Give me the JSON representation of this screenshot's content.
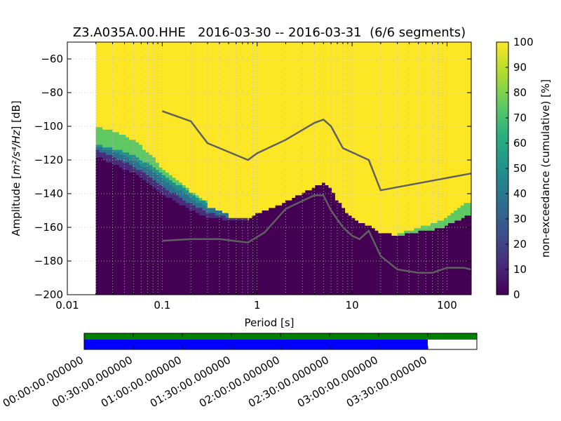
{
  "chart_data": {
    "type": "heatmap",
    "title": "Z3.A035A.00.HHE   2016-03-30 -- 2016-03-31  (6/6 segments)",
    "xlabel": "Period [s]",
    "ylabel": "Amplitude [m²/s⁴/Hz] [dB]",
    "ylabel_prefix": "Amplitude [",
    "ylabel_unit": "m²/s⁴/Hz",
    "ylabel_suffix": "] [dB]",
    "x_scale": "log",
    "xlim": [
      0.01,
      180
    ],
    "ylim": [
      -200,
      -50
    ],
    "x_ticks": [
      {
        "value": 0.01,
        "label": "0.01"
      },
      {
        "value": 0.1,
        "label": "0.1"
      },
      {
        "value": 1,
        "label": "1"
      },
      {
        "value": 10,
        "label": "10"
      },
      {
        "value": 100,
        "label": "100"
      }
    ],
    "y_ticks": [
      {
        "value": -60,
        "label": "−60"
      },
      {
        "value": -80,
        "label": "−80"
      },
      {
        "value": -100,
        "label": "−100"
      },
      {
        "value": -120,
        "label": "−120"
      },
      {
        "value": -140,
        "label": "−140"
      },
      {
        "value": -160,
        "label": "−160"
      },
      {
        "value": -180,
        "label": "−180"
      },
      {
        "value": -200,
        "label": "−200"
      }
    ],
    "grid": true,
    "colorbar": {
      "label": "non-exceedance (cumulative) [%]",
      "range": [
        0,
        100
      ],
      "ticks": [
        "0",
        "10",
        "20",
        "30",
        "40",
        "50",
        "60",
        "70",
        "80",
        "90",
        "100"
      ],
      "colormap": [
        "#440154",
        "#472d7b",
        "#3b528b",
        "#2c728e",
        "#21918c",
        "#28ae80",
        "#5ec962",
        "#addc30",
        "#fde725"
      ]
    },
    "data_start_period": 0.02,
    "upper_boundary": {
      "comment_free": true,
      "period": [
        0.02,
        0.03,
        0.05,
        0.1,
        0.2,
        0.3,
        0.5,
        0.8,
        1.0,
        1.5,
        2.0,
        3.0,
        4.0,
        5.0,
        6.0,
        7.0,
        9.0,
        12.0,
        16.0,
        20.0,
        30.0,
        40.0,
        60.0,
        80.0,
        100.0,
        130.0,
        180.0
      ],
      "dB": [
        -121,
        -126,
        -134,
        -143,
        -152,
        -155,
        -157,
        -156,
        -152,
        -148,
        -145,
        -140,
        -136,
        -134,
        -137,
        -144,
        -152,
        -157,
        -160,
        -163,
        -165,
        -164,
        -162,
        -161,
        -159,
        -156,
        -152
      ]
    },
    "transition_bands": [
      {
        "percent": 5,
        "period": [
          0.02,
          0.03,
          0.05,
          0.08,
          0.1,
          0.15,
          0.2,
          0.3,
          0.5,
          0.8,
          1.0
        ],
        "dB": [
          -118,
          -122,
          -128,
          -136,
          -140,
          -146,
          -150,
          -154,
          -156,
          -156,
          -155
        ]
      },
      {
        "percent": 15,
        "period": [
          0.02,
          0.03,
          0.05,
          0.08,
          0.1,
          0.15,
          0.2,
          0.3,
          0.5,
          0.8
        ],
        "dB": [
          -114,
          -118,
          -124,
          -131,
          -136,
          -142,
          -146,
          -151,
          -154,
          -155
        ]
      },
      {
        "percent": 35,
        "period": [
          0.02,
          0.03,
          0.05,
          0.08,
          0.1,
          0.15,
          0.2,
          0.3,
          0.5
        ],
        "dB": [
          -112,
          -115,
          -120,
          -127,
          -132,
          -138,
          -143,
          -148,
          -152
        ]
      },
      {
        "percent": 55,
        "period": [
          0.02,
          0.03,
          0.05,
          0.08,
          0.1,
          0.15,
          0.2,
          0.3
        ],
        "dB": [
          -111,
          -113,
          -117,
          -124,
          -129,
          -135,
          -140,
          -146
        ]
      },
      {
        "percent": 75,
        "period": [
          0.02,
          0.03,
          0.05,
          0.08,
          0.1,
          0.15,
          0.2,
          0.3
        ],
        "dB": [
          -100,
          -103,
          -108,
          -118,
          -125,
          -133,
          -139,
          -145
        ]
      }
    ],
    "upper_right_band": {
      "percent": 75,
      "period": [
        30.0,
        40.0,
        60.0,
        80.0,
        100.0,
        130.0,
        180.0
      ],
      "dB": [
        -164,
        -162,
        -159,
        -157,
        -154,
        -149,
        -144
      ]
    },
    "series": [
      {
        "period": [
          0.1,
          0.2,
          0.3,
          0.8,
          1.0,
          2.0,
          4.0,
          5.0,
          6.0,
          8.0,
          15.0,
          20.0,
          180.0
        ],
        "dB": [
          -91,
          -97,
          -110,
          -120,
          -116,
          -108,
          -98,
          -96,
          -100,
          -113,
          -120,
          -138,
          -128
        ]
      },
      {
        "period": [
          0.1,
          0.2,
          0.4,
          0.8,
          1.2,
          2.0,
          4.0,
          5.0,
          6.0,
          8.0,
          10.0,
          12.0,
          15.0,
          20.0,
          30.0,
          50.0,
          70.0,
          100.0,
          150.0,
          180.0
        ],
        "dB": [
          -168,
          -167,
          -167,
          -169,
          -163,
          -149,
          -141,
          -141,
          -150,
          -160,
          -165,
          -167,
          -162,
          -177,
          -185,
          -187,
          -187,
          -184,
          -184,
          -185
        ]
      }
    ],
    "timeline": {
      "tick_labels": [
        "00:00:00.000000",
        "00:30:00.000000",
        "01:00:00.000000",
        "01:30:00.000000",
        "02:00:00.000000",
        "02:30:00.000000",
        "03:00:00.000000",
        "03:30:00.000000"
      ],
      "span_minutes": 240,
      "green_coverage_minutes": [
        0,
        240
      ],
      "blue_coverage_minutes": [
        0,
        210
      ]
    }
  }
}
